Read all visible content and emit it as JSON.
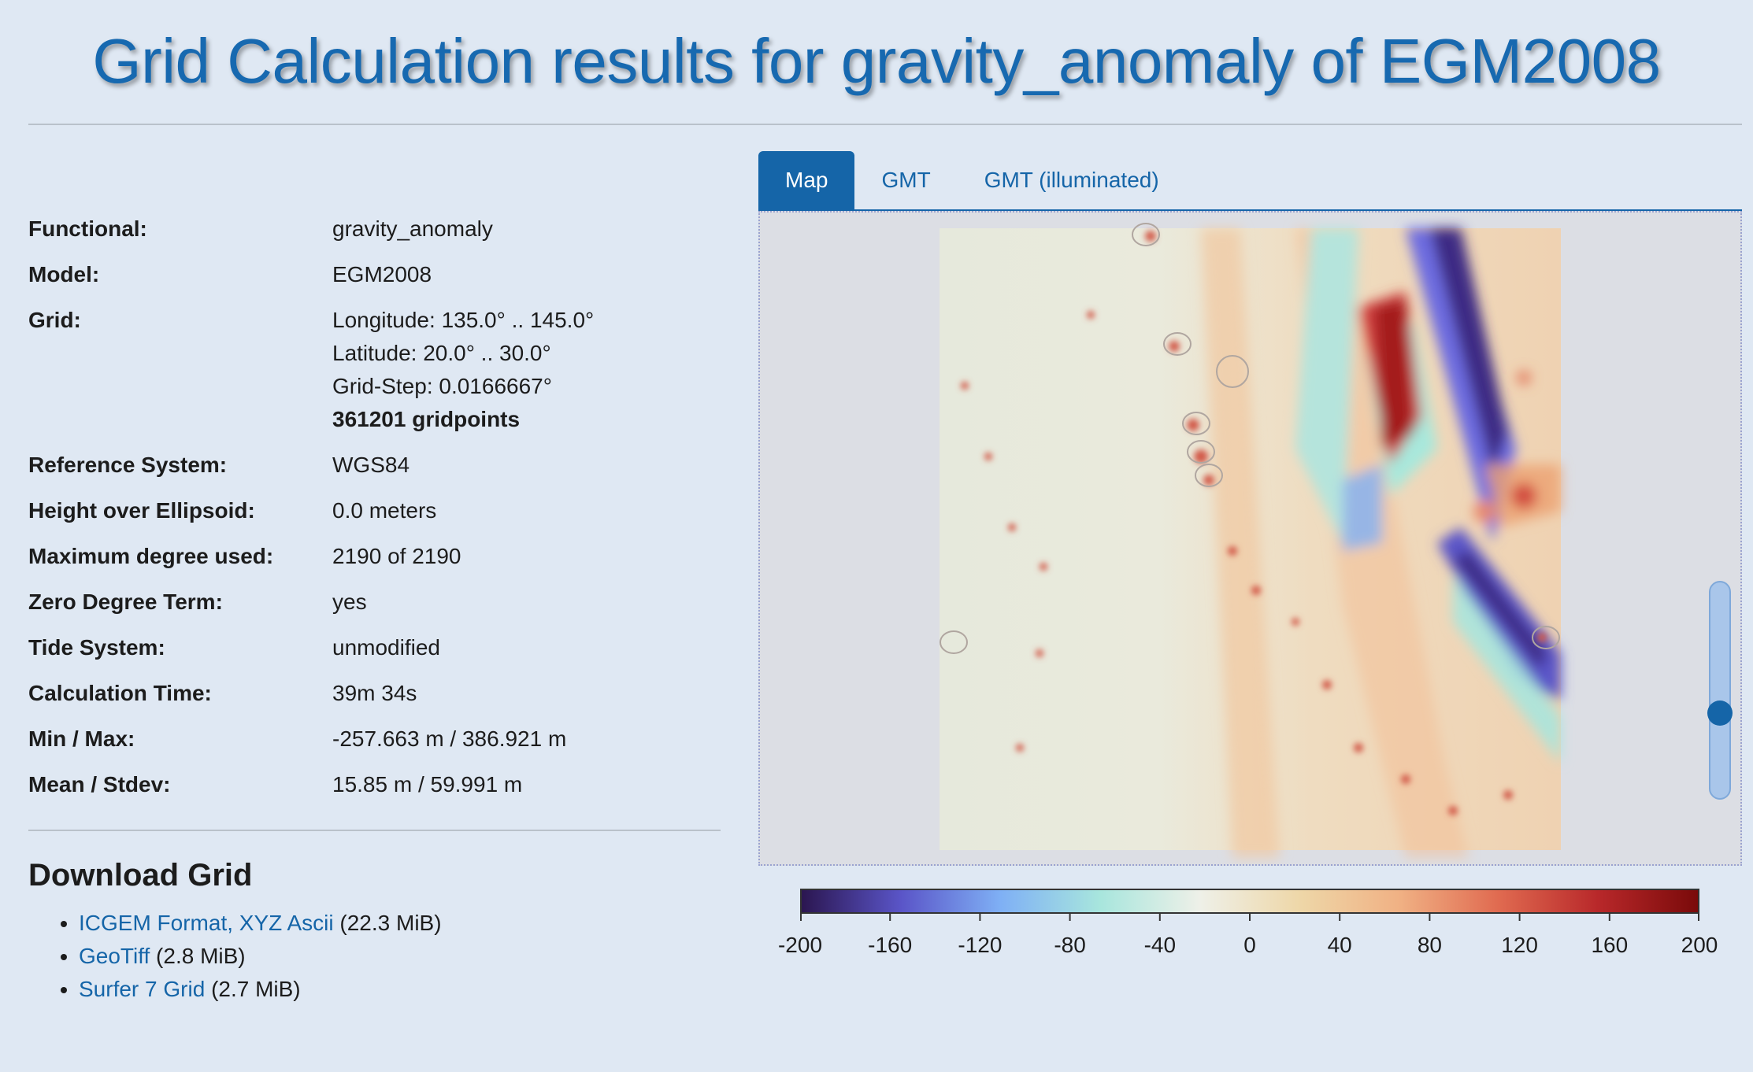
{
  "header": {
    "title": "Grid Calculation results for gravity_anomaly of EGM2008"
  },
  "info": [
    {
      "label": "Functional:",
      "lines": [
        "gravity_anomaly"
      ]
    },
    {
      "label": "Model:",
      "lines": [
        "EGM2008"
      ]
    },
    {
      "label": "Grid:",
      "lines": [
        "Longitude: 135.0° .. 145.0°",
        "Latitude: 20.0° .. 30.0°",
        "Grid-Step: 0.0166667°"
      ],
      "bold_line": "361201 gridpoints"
    },
    {
      "label": "Reference System:",
      "lines": [
        "WGS84"
      ]
    },
    {
      "label": "Height over Ellipsoid:",
      "lines": [
        "0.0 meters"
      ]
    },
    {
      "label": "Maximum degree used:",
      "lines": [
        "2190 of 2190"
      ]
    },
    {
      "label": "Zero Degree Term:",
      "lines": [
        "yes"
      ]
    },
    {
      "label": "Tide System:",
      "lines": [
        "unmodified"
      ]
    },
    {
      "label": "Calculation Time:",
      "lines": [
        "39m 34s"
      ]
    },
    {
      "label": "Min / Max:",
      "lines": [
        "-257.663 m / 386.921 m"
      ]
    },
    {
      "label": "Mean / Stdev:",
      "lines": [
        "15.85 m / 59.991 m"
      ]
    }
  ],
  "download": {
    "heading": "Download Grid",
    "items": [
      {
        "link": "ICGEM Format, XYZ Ascii",
        "size": "(22.3 MiB)"
      },
      {
        "link": "GeoTiff",
        "size": "(2.8 MiB)"
      },
      {
        "link": "Surfer 7 Grid",
        "size": "(2.7 MiB)"
      }
    ]
  },
  "tabs": [
    {
      "label": "Map",
      "active": true
    },
    {
      "label": "GMT",
      "active": false
    },
    {
      "label": "GMT (illuminated)",
      "active": false
    }
  ],
  "map": {
    "opacity_slider_level": 0.62
  },
  "colorbar": {
    "ticks": [
      "-200",
      "-160",
      "-120",
      "-80",
      "-40",
      "0",
      "40",
      "80",
      "120",
      "160",
      "200"
    ],
    "range": [
      -200,
      200
    ],
    "colors": [
      "#2b1650",
      "#5a55c8",
      "#7fb0f5",
      "#a8e6dd",
      "#eef0e8",
      "#eed7a8",
      "#f0b184",
      "#e06a50",
      "#b8282a",
      "#7a0a0a"
    ]
  }
}
